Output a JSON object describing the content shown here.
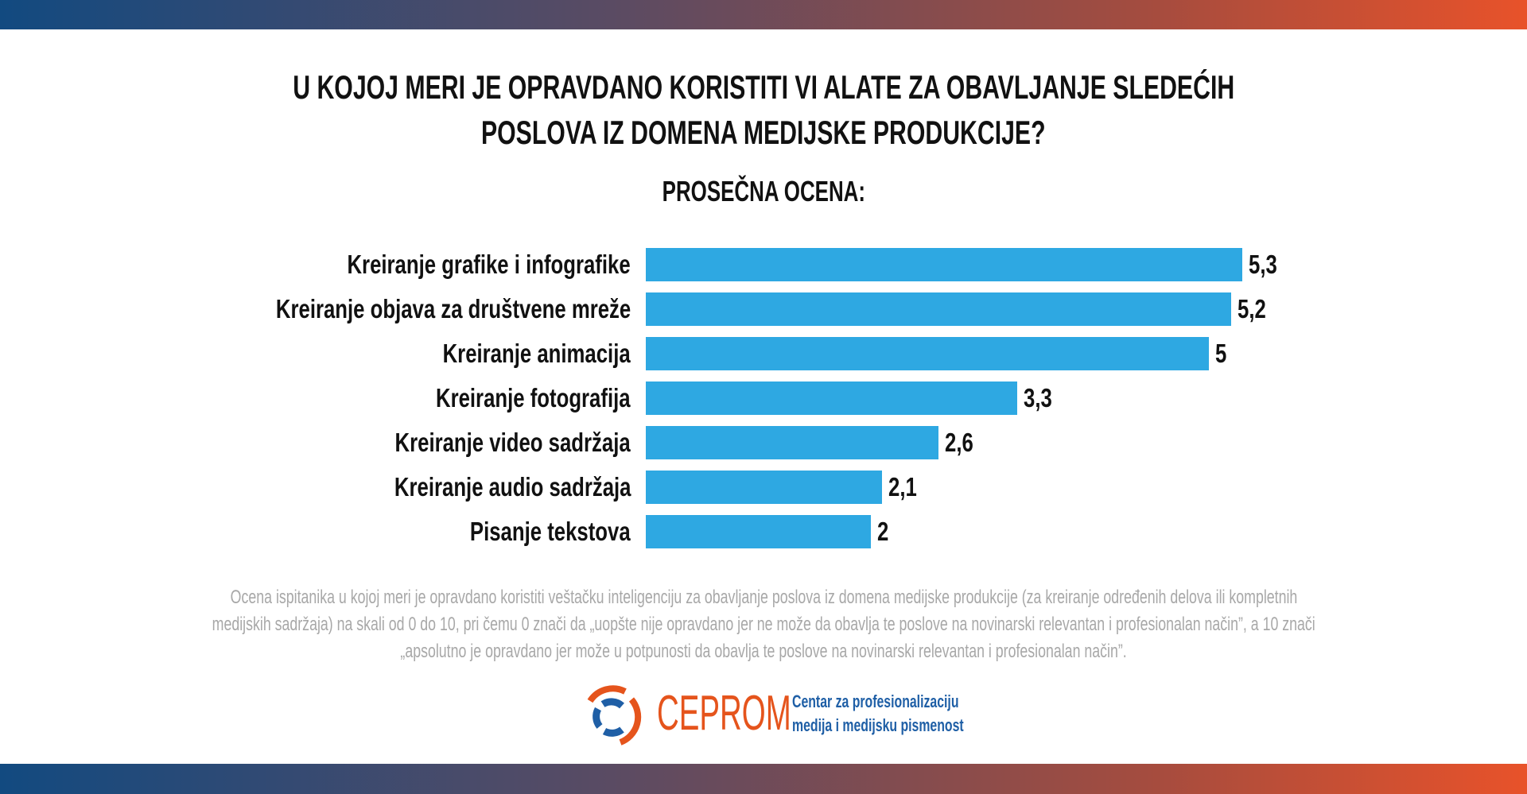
{
  "title_line1": "U KOJOJ MERI JE OPRAVDANO KORISTITI VI ALATE ZA OBAVLJANJE SLEDEĆIH",
  "title_line2": "POSLOVA IZ DOMENA MEDIJSKE PRODUKCIJE?",
  "subtitle": "PROSEČNA OCENA:",
  "chart_data": {
    "type": "bar",
    "orientation": "horizontal",
    "title": "U KOJOJ MERI JE OPRAVDANO KORISTITI VI ALATE ZA OBAVLJANJE SLEDEĆIH POSLOVA IZ DOMENA MEDIJSKE PRODUKCIJE?",
    "subtitle": "PROSEČNA OCENA:",
    "categories": [
      "Kreiranje grafike i infografike",
      "Kreiranje objava za društvene mreže",
      "Kreiranje animacija",
      "Kreiranje fotografija",
      "Kreiranje video sadržaja",
      "Kreiranje audio sadržaja",
      "Pisanje tekstova"
    ],
    "values": [
      5.3,
      5.2,
      5,
      3.3,
      2.6,
      2.1,
      2
    ],
    "value_labels": [
      "5,3",
      "5,2",
      "5",
      "3,3",
      "2,6",
      "2,1",
      "2"
    ],
    "xlim": [
      0,
      10
    ],
    "grid": false,
    "bar_color": "#2ea8e2"
  },
  "footnote": [
    "Ocena ispitanika u kojoj meri je opravdano koristiti veštačku inteligenciju za obavljanje poslova iz domena medijske produkcije (za kreiranje određenih delova ili kompletnih",
    "medijskih sadržaja) na skali od 0 do 10, pri čemu 0 znači da „uopšte nije opravdano jer ne može da obavlja te poslove na novinarski relevantan i profesionalan način”, a 10 znači",
    "„apsolutno je opravdano jer može u potpunosti da obavlja te poslove na novinarski relevantan i profesionalan način”."
  ],
  "logo": {
    "name": "CEPROM",
    "tagline_line1": "Centar za profesionalizaciju",
    "tagline_line2": "medija i medijsku pismenost",
    "colors": {
      "orange": "#e5541c",
      "blue": "#1f5fa6"
    }
  },
  "colors": {
    "band_start": "#124a80",
    "band_end": "#e8522a"
  }
}
